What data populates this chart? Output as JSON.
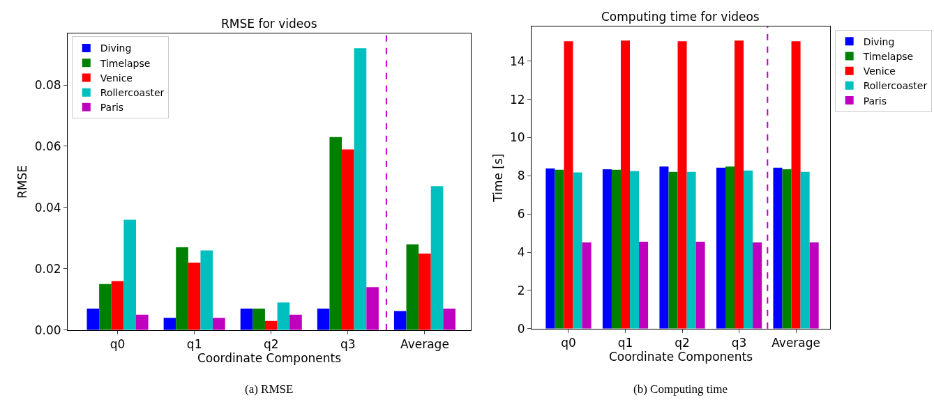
{
  "chart_data": [
    {
      "type": "bar",
      "title": "RMSE for videos",
      "xlabel": "Coordinate Components",
      "ylabel": "RMSE",
      "categories": [
        "q0",
        "q1",
        "q2",
        "q3",
        "Average"
      ],
      "series": [
        {
          "name": "Diving",
          "color": "#0000ff",
          "values": [
            0.007,
            0.004,
            0.007,
            0.007,
            0.0062
          ]
        },
        {
          "name": "Timelapse",
          "color": "#008000",
          "values": [
            0.015,
            0.027,
            0.007,
            0.063,
            0.028
          ]
        },
        {
          "name": "Venice",
          "color": "#ff0000",
          "values": [
            0.016,
            0.022,
            0.003,
            0.059,
            0.025
          ]
        },
        {
          "name": "Rollercoaster",
          "color": "#00bfbf",
          "values": [
            0.036,
            0.026,
            0.009,
            0.092,
            0.047
          ]
        },
        {
          "name": "Paris",
          "color": "#bf00bf",
          "values": [
            0.005,
            0.004,
            0.005,
            0.014,
            0.007
          ]
        }
      ],
      "ylim": [
        0,
        0.0968
      ],
      "yticks": [
        {
          "value": 0,
          "label": "0.00"
        },
        {
          "value": 0.02,
          "label": "0.02"
        },
        {
          "value": 0.04,
          "label": "0.04"
        },
        {
          "value": 0.06,
          "label": "0.06"
        },
        {
          "value": 0.08,
          "label": "0.08"
        }
      ],
      "legend": "top left",
      "ref_lines": [
        {
          "axis": "x",
          "value": "Average",
          "color": "#bf00bf",
          "line_style": "dashed"
        }
      ],
      "annotations": [
        "(a) RMSE"
      ]
    },
    {
      "type": "bar",
      "title": "Computing time for videos",
      "xlabel": "Coordinate Components",
      "ylabel": "Time [s]",
      "categories": [
        "q0",
        "q1",
        "q2",
        "q3",
        "Average"
      ],
      "series": [
        {
          "name": "Diving",
          "color": "#0000ff",
          "values": [
            8.39,
            8.34,
            8.49,
            8.42,
            8.42
          ]
        },
        {
          "name": "Timelapse",
          "color": "#008000",
          "values": [
            8.31,
            8.31,
            8.2,
            8.49,
            8.34
          ]
        },
        {
          "name": "Venice",
          "color": "#ff0000",
          "values": [
            15.04,
            15.07,
            15.04,
            15.07,
            15.04
          ]
        },
        {
          "name": "Rollercoaster",
          "color": "#00bfbf",
          "values": [
            8.18,
            8.25,
            8.2,
            8.28,
            8.2
          ]
        },
        {
          "name": "Paris",
          "color": "#bf00bf",
          "values": [
            4.51,
            4.55,
            4.55,
            4.51,
            4.51
          ]
        }
      ],
      "ylim": [
        0,
        15.8
      ],
      "yticks": [
        0,
        2,
        4,
        6,
        8,
        10,
        12,
        14
      ],
      "legend": "top right",
      "ref_lines": [
        {
          "axis": "x",
          "value": "Average",
          "color": "#bf00bf",
          "line_style": "dashed"
        }
      ],
      "annotations": [
        "(b) Computing time"
      ]
    }
  ]
}
